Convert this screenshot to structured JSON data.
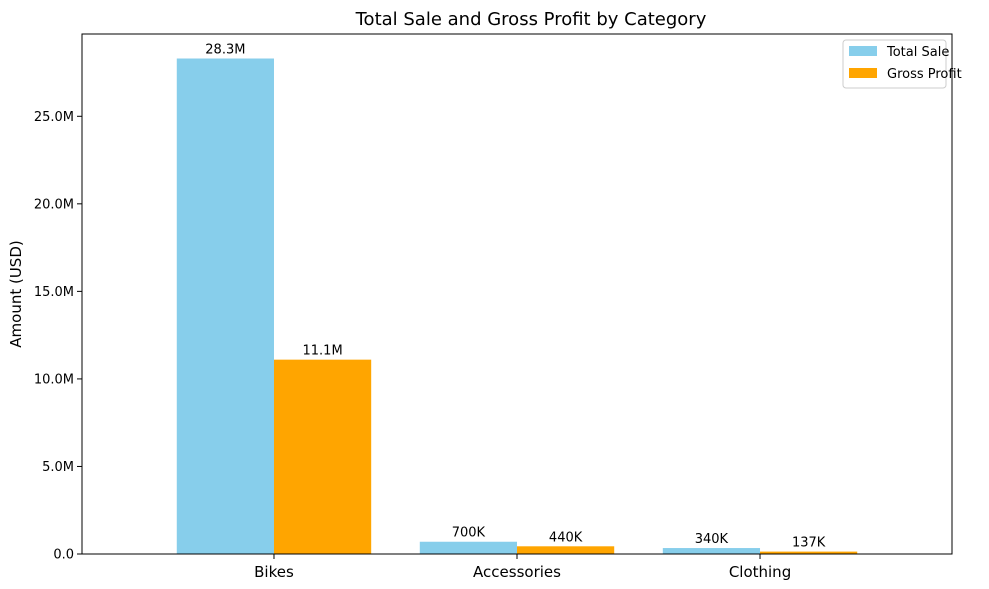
{
  "chart_data": {
    "type": "bar",
    "title": "Total Sale and Gross Profit by Category",
    "xlabel": "",
    "ylabel": "Amount (USD)",
    "categories": [
      "Bikes",
      "Accessories",
      "Clothing"
    ],
    "series": [
      {
        "name": "Total Sale",
        "color": "#87CEEB",
        "values": [
          28300000,
          700000,
          340000
        ],
        "labels": [
          "28.3M",
          "700K",
          "340K"
        ]
      },
      {
        "name": "Gross Profit",
        "color": "#FFA500",
        "values": [
          11100000,
          440000,
          137000
        ],
        "labels": [
          "11.1M",
          "440K",
          "137K"
        ]
      }
    ],
    "ylim": [
      0,
      29700000
    ],
    "yticks": [
      0,
      5000000,
      10000000,
      15000000,
      20000000,
      25000000
    ],
    "ytick_labels": [
      "0.0",
      "5.0M",
      "10.0M",
      "15.0M",
      "20.0M",
      "25.0M"
    ],
    "legend_position": "top-right",
    "grid": false
  }
}
